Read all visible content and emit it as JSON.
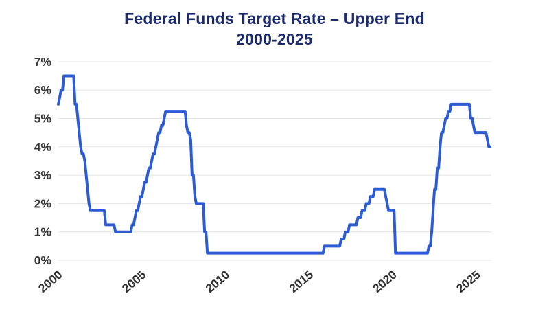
{
  "chart_data": {
    "type": "line",
    "title_line1": "Federal Funds Target Rate – Upper End",
    "title_line2": "2000-2025",
    "xlabel": "",
    "ylabel": "",
    "ylim": [
      0,
      7
    ],
    "x_range_years": [
      2000,
      2025.83
    ],
    "grid": "horizontal-only",
    "legend": "none",
    "line_color": "#2b5cd6",
    "gridline_color": "#e3e3e3",
    "title_color": "#1c2a6e",
    "axis_label_color": "#3a3a3a",
    "y_ticks": [
      {
        "label": "7%",
        "value": 7
      },
      {
        "label": "6%",
        "value": 6
      },
      {
        "label": "5%",
        "value": 5
      },
      {
        "label": "4%",
        "value": 4
      },
      {
        "label": "3%",
        "value": 3
      },
      {
        "label": "2%",
        "value": 2
      },
      {
        "label": "1%",
        "value": 1
      },
      {
        "label": "0%",
        "value": 0
      }
    ],
    "x_ticks": [
      {
        "label": "2000",
        "years_since_2000": 0
      },
      {
        "label": "2005",
        "years_since_2000": 5
      },
      {
        "label": "2010",
        "years_since_2000": 10
      },
      {
        "label": "2015",
        "years_since_2000": 15
      },
      {
        "label": "2020",
        "years_since_2000": 20
      },
      {
        "label": "2025",
        "years_since_2000": 25
      }
    ],
    "series_name": "Federal funds target rate upper end (%, monthly)",
    "monthly_values_by_year": {
      "2000": [
        5.5,
        5.75,
        6.0,
        6.0,
        6.5,
        6.5,
        6.5,
        6.5,
        6.5,
        6.5,
        6.5,
        6.5
      ],
      "2001": [
        5.5,
        5.5,
        5.0,
        4.5,
        4.0,
        3.75,
        3.75,
        3.5,
        3.0,
        2.5,
        2.0,
        1.75
      ],
      "2002": [
        1.75,
        1.75,
        1.75,
        1.75,
        1.75,
        1.75,
        1.75,
        1.75,
        1.75,
        1.75,
        1.25,
        1.25
      ],
      "2003": [
        1.25,
        1.25,
        1.25,
        1.25,
        1.25,
        1.0,
        1.0,
        1.0,
        1.0,
        1.0,
        1.0,
        1.0
      ],
      "2004": [
        1.0,
        1.0,
        1.0,
        1.0,
        1.0,
        1.25,
        1.25,
        1.5,
        1.75,
        1.75,
        2.0,
        2.25
      ],
      "2005": [
        2.25,
        2.5,
        2.75,
        2.75,
        3.0,
        3.25,
        3.25,
        3.5,
        3.75,
        3.75,
        4.0,
        4.25
      ],
      "2006": [
        4.5,
        4.5,
        4.75,
        4.75,
        5.0,
        5.25,
        5.25,
        5.25,
        5.25,
        5.25,
        5.25,
        5.25
      ],
      "2007": [
        5.25,
        5.25,
        5.25,
        5.25,
        5.25,
        5.25,
        5.25,
        5.25,
        4.75,
        4.5,
        4.5,
        4.25
      ],
      "2008": [
        3.0,
        3.0,
        2.25,
        2.0,
        2.0,
        2.0,
        2.0,
        2.0,
        2.0,
        1.0,
        1.0,
        0.25
      ],
      "2009": [
        0.25,
        0.25,
        0.25,
        0.25,
        0.25,
        0.25,
        0.25,
        0.25,
        0.25,
        0.25,
        0.25,
        0.25
      ],
      "2010": [
        0.25,
        0.25,
        0.25,
        0.25,
        0.25,
        0.25,
        0.25,
        0.25,
        0.25,
        0.25,
        0.25,
        0.25
      ],
      "2011": [
        0.25,
        0.25,
        0.25,
        0.25,
        0.25,
        0.25,
        0.25,
        0.25,
        0.25,
        0.25,
        0.25,
        0.25
      ],
      "2012": [
        0.25,
        0.25,
        0.25,
        0.25,
        0.25,
        0.25,
        0.25,
        0.25,
        0.25,
        0.25,
        0.25,
        0.25
      ],
      "2013": [
        0.25,
        0.25,
        0.25,
        0.25,
        0.25,
        0.25,
        0.25,
        0.25,
        0.25,
        0.25,
        0.25,
        0.25
      ],
      "2014": [
        0.25,
        0.25,
        0.25,
        0.25,
        0.25,
        0.25,
        0.25,
        0.25,
        0.25,
        0.25,
        0.25,
        0.25
      ],
      "2015": [
        0.25,
        0.25,
        0.25,
        0.25,
        0.25,
        0.25,
        0.25,
        0.25,
        0.25,
        0.25,
        0.25,
        0.5
      ],
      "2016": [
        0.5,
        0.5,
        0.5,
        0.5,
        0.5,
        0.5,
        0.5,
        0.5,
        0.5,
        0.5,
        0.5,
        0.75
      ],
      "2017": [
        0.75,
        0.75,
        1.0,
        1.0,
        1.0,
        1.25,
        1.25,
        1.25,
        1.25,
        1.25,
        1.25,
        1.5
      ],
      "2018": [
        1.5,
        1.5,
        1.75,
        1.75,
        1.75,
        2.0,
        2.0,
        2.0,
        2.25,
        2.25,
        2.25,
        2.5
      ],
      "2019": [
        2.5,
        2.5,
        2.5,
        2.5,
        2.5,
        2.5,
        2.5,
        2.25,
        2.0,
        1.75,
        1.75,
        1.75
      ],
      "2020": [
        1.75,
        1.75,
        0.25,
        0.25,
        0.25,
        0.25,
        0.25,
        0.25,
        0.25,
        0.25,
        0.25,
        0.25
      ],
      "2021": [
        0.25,
        0.25,
        0.25,
        0.25,
        0.25,
        0.25,
        0.25,
        0.25,
        0.25,
        0.25,
        0.25,
        0.25
      ],
      "2022": [
        0.25,
        0.25,
        0.5,
        0.5,
        1.0,
        1.75,
        2.5,
        2.5,
        3.25,
        3.25,
        4.0,
        4.5
      ],
      "2023": [
        4.5,
        4.75,
        5.0,
        5.0,
        5.25,
        5.25,
        5.5,
        5.5,
        5.5,
        5.5,
        5.5,
        5.5
      ],
      "2024": [
        5.5,
        5.5,
        5.5,
        5.5,
        5.5,
        5.5,
        5.5,
        5.5,
        5.0,
        5.0,
        4.75,
        4.5
      ],
      "2025": [
        4.5,
        4.5,
        4.5,
        4.5,
        4.5,
        4.5,
        4.5,
        4.5,
        4.25,
        4.0,
        4.0
      ]
    }
  }
}
